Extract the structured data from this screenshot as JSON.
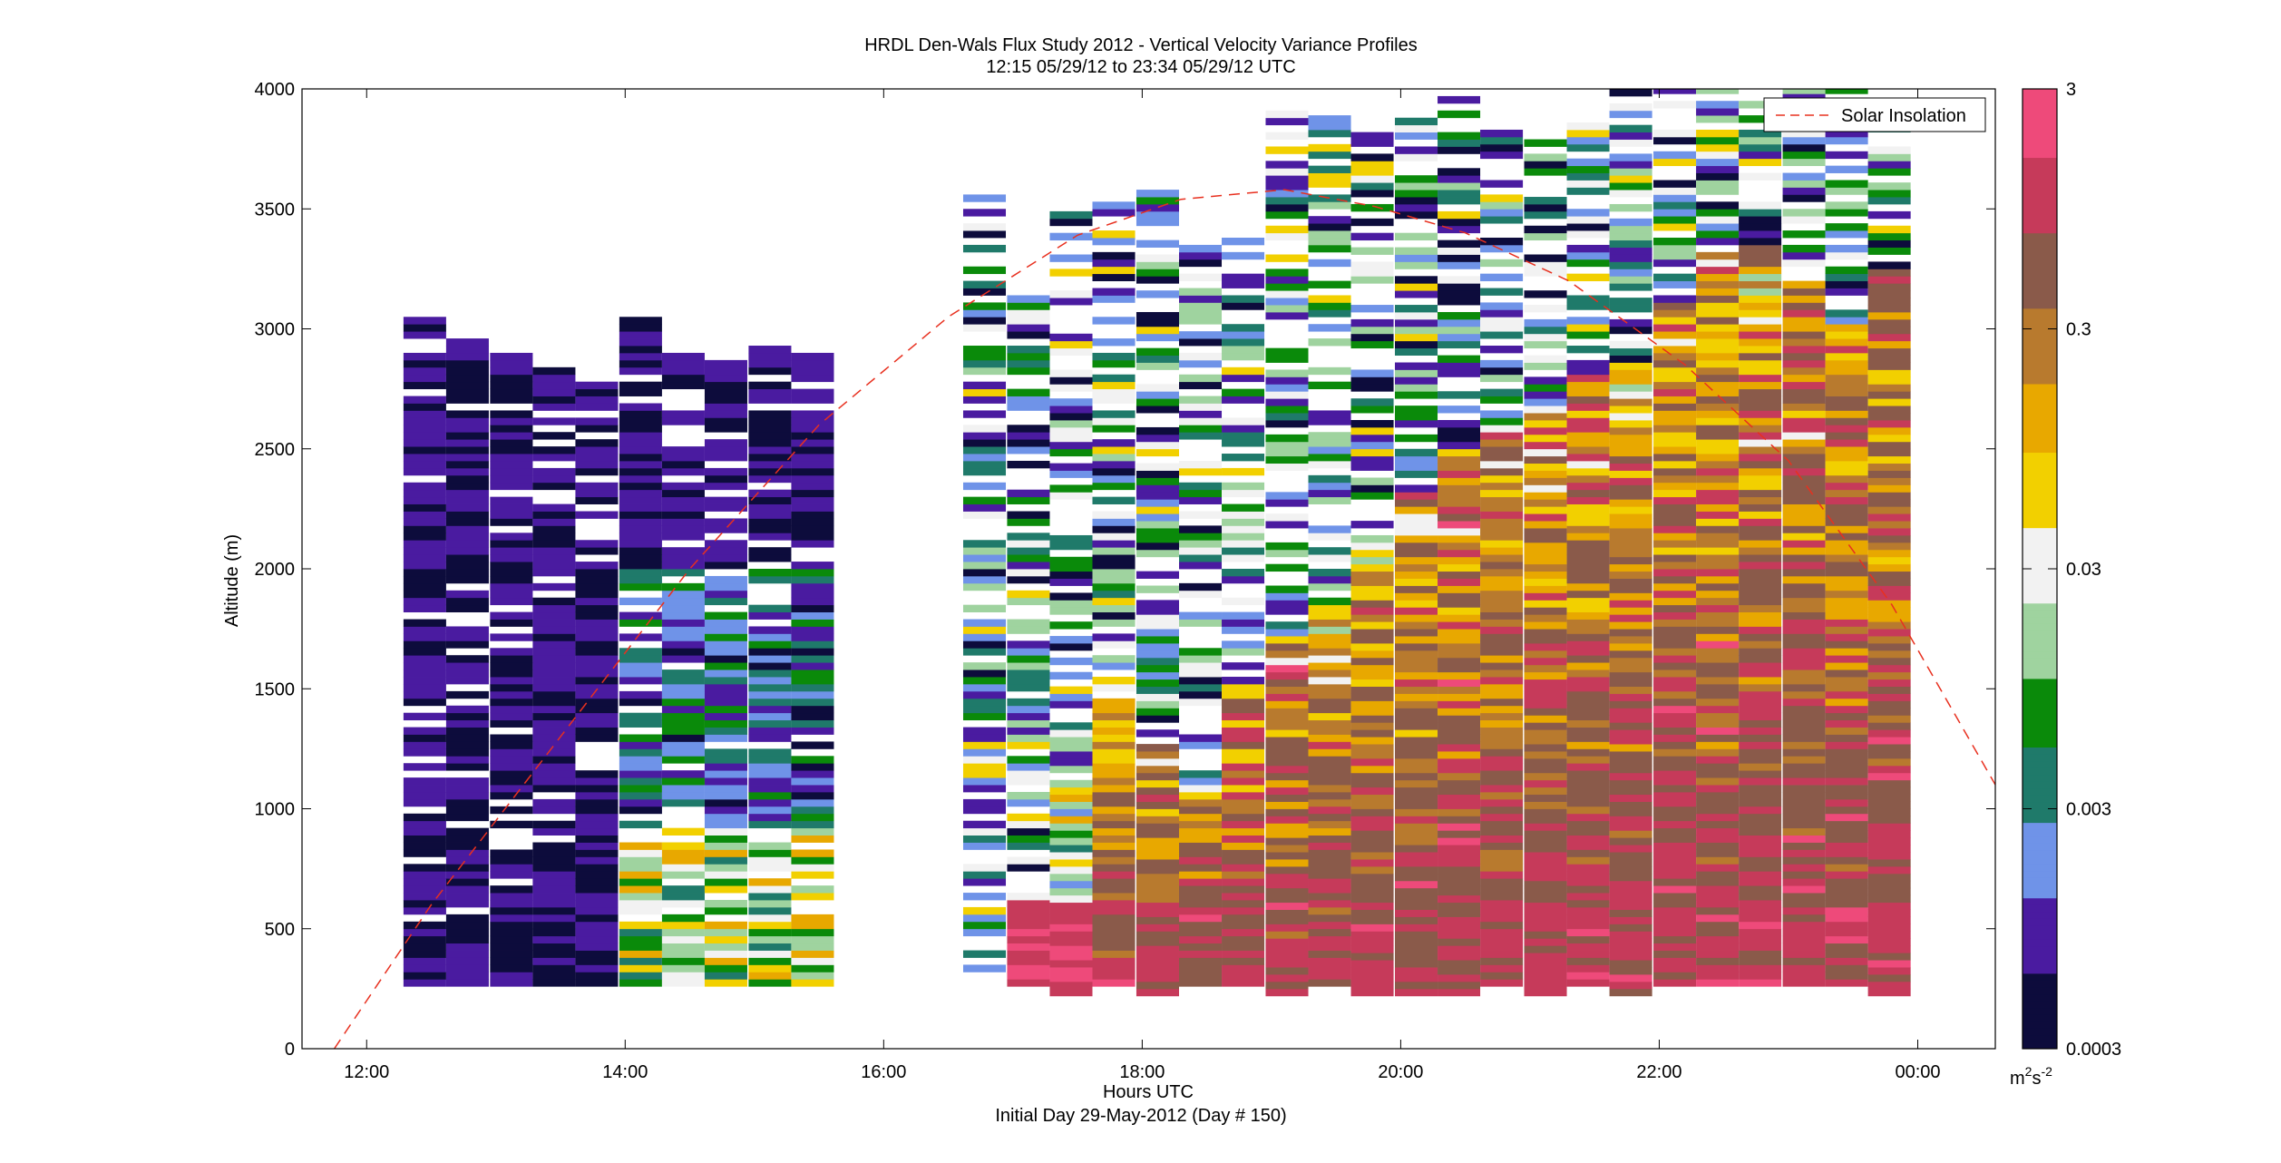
{
  "chart_data": {
    "type": "heatmap",
    "title": "HRDL Den-Wals Flux Study 2012 - Vertical Velocity Variance Profiles",
    "subtitle": "12:15 05/29/12 to 23:34 05/29/12  UTC",
    "xlabel": "Hours UTC",
    "xlabel2": "Initial Day 29-May-2012 (Day # 150)",
    "ylabel": "Altitude (m)",
    "xlim": [
      11.5,
      24.6
    ],
    "ylim": [
      0,
      4000
    ],
    "x_ticks": [
      12,
      14,
      16,
      18,
      20,
      22,
      24
    ],
    "x_tick_labels": [
      "12:00",
      "14:00",
      "16:00",
      "18:00",
      "20:00",
      "22:00",
      "00:00"
    ],
    "y_ticks": [
      0,
      500,
      1000,
      1500,
      2000,
      2500,
      3000,
      3500,
      4000
    ],
    "y_tick_labels": [
      "0",
      "500",
      "1000",
      "1500",
      "2000",
      "2500",
      "3000",
      "3500",
      "4000"
    ],
    "colorbar": {
      "scale": "log",
      "range": [
        0.0003,
        3
      ],
      "ticks": [
        0.0003,
        0.003,
        0.03,
        0.3,
        3
      ],
      "tick_labels": [
        "0.0003",
        "0.003",
        "0.03",
        "0.3",
        "3"
      ],
      "unit_base": "m",
      "unit_base_exp": "2",
      "unit_tail": "s",
      "unit_tail_exp": "-2",
      "colors": [
        "#0d0c3c",
        "#4a1ba0",
        "#6f93e8",
        "#1f7a6a",
        "#0a8a0a",
        "#9fd39f",
        "#f2f2f2",
        "#f2d000",
        "#e8a800",
        "#b87a2e",
        "#8a5a4a",
        "#c63a5a",
        "#ee4a7a",
        "#b00028"
      ]
    },
    "legend": {
      "placement": "top-right",
      "entries": [
        {
          "label": "Solar Insolation",
          "color": "#e8301f",
          "style": "dashed"
        }
      ]
    },
    "solar_insolation": {
      "x": [
        11.75,
        12.5,
        13.5,
        14.5,
        15.5,
        16.5,
        17.5,
        18.3,
        19.1,
        19.8,
        20.5,
        21.3,
        22.2,
        23.0,
        23.8,
        24.6
      ],
      "y": [
        0,
        600,
        1300,
        2000,
        2600,
        3050,
        3390,
        3540,
        3580,
        3510,
        3400,
        3200,
        2850,
        2450,
        1850,
        1100
      ]
    },
    "profiles": {
      "times_hours": [
        12.45,
        12.78,
        13.12,
        13.45,
        13.78,
        14.12,
        14.45,
        14.78,
        15.12,
        15.45,
        16.78,
        17.12,
        17.45,
        17.78,
        18.12,
        18.45,
        18.78,
        19.12,
        19.45,
        19.78,
        20.12,
        20.45,
        20.78,
        21.12,
        21.45,
        21.78,
        22.12,
        22.45,
        22.78,
        23.12,
        23.45,
        23.78
      ],
      "bottom_altitude_m": [
        260,
        260,
        260,
        260,
        260,
        260,
        260,
        260,
        260,
        260,
        260,
        260,
        220,
        260,
        220,
        260,
        260,
        220,
        260,
        220,
        220,
        220,
        260,
        220,
        260,
        220,
        260,
        260,
        260,
        260,
        260,
        220
      ],
      "top_altitude_m": [
        3050,
        2960,
        2900,
        2840,
        2780,
        3050,
        2880,
        2860,
        2920,
        2930,
        3550,
        3130,
        3550,
        3530,
        3580,
        3330,
        3380,
        3960,
        3920,
        3800,
        3900,
        3990,
        3830,
        3790,
        3860,
        3990,
        4000,
        4000,
        4000,
        4000,
        3990,
        3900
      ],
      "boundary_layer_top_m": [
        0,
        0,
        0,
        0,
        0,
        0,
        0,
        0,
        0,
        0,
        0,
        650,
        1100,
        1450,
        1250,
        1100,
        1500,
        1700,
        1850,
        2100,
        2300,
        2500,
        2600,
        2650,
        2800,
        2850,
        3100,
        3300,
        3350,
        3200,
        3000,
        3250
      ]
    }
  }
}
